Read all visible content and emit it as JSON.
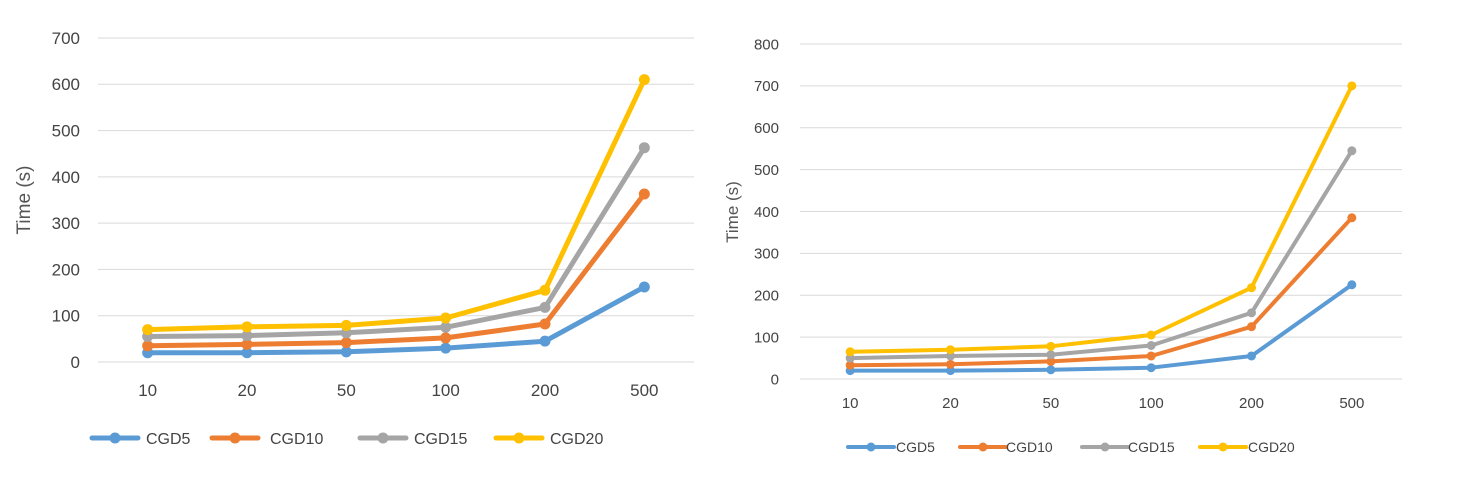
{
  "colors": {
    "CGD5": "#5B9BD5",
    "CGD10": "#ED7D31",
    "CGD15": "#A5A5A5",
    "CGD20": "#FFC000",
    "grid": "#D9D9D9",
    "text": "#444444"
  },
  "chart_data": [
    {
      "type": "line",
      "categories": [
        "10",
        "20",
        "50",
        "100",
        "200",
        "500"
      ],
      "ylabel": "Time (s)",
      "xlabel": "",
      "ylim": [
        0,
        700
      ],
      "yticks": [
        "0",
        "100",
        "200",
        "300",
        "400",
        "500",
        "600",
        "700"
      ],
      "grid": true,
      "legend": "bottom",
      "series": [
        {
          "name": "CGD5",
          "values": [
            20,
            20,
            22,
            30,
            45,
            162
          ]
        },
        {
          "name": "CGD10",
          "values": [
            35,
            38,
            42,
            52,
            82,
            363
          ]
        },
        {
          "name": "CGD15",
          "values": [
            55,
            57,
            63,
            75,
            118,
            463
          ]
        },
        {
          "name": "CGD20",
          "values": [
            70,
            76,
            79,
            95,
            155,
            610
          ]
        }
      ]
    },
    {
      "type": "line",
      "categories": [
        "10",
        "20",
        "50",
        "100",
        "200",
        "500"
      ],
      "ylabel": "Time (s)",
      "xlabel": "",
      "ylim": [
        0,
        800
      ],
      "yticks": [
        "0",
        "100",
        "200",
        "300",
        "400",
        "500",
        "600",
        "700",
        "800"
      ],
      "grid": true,
      "legend": "bottom",
      "series": [
        {
          "name": "CGD5",
          "values": [
            20,
            20,
            22,
            27,
            55,
            225
          ]
        },
        {
          "name": "CGD10",
          "values": [
            33,
            35,
            42,
            55,
            125,
            385
          ]
        },
        {
          "name": "CGD15",
          "values": [
            50,
            55,
            58,
            80,
            158,
            545
          ]
        },
        {
          "name": "CGD20",
          "values": [
            65,
            70,
            78,
            105,
            218,
            700
          ]
        }
      ]
    }
  ]
}
